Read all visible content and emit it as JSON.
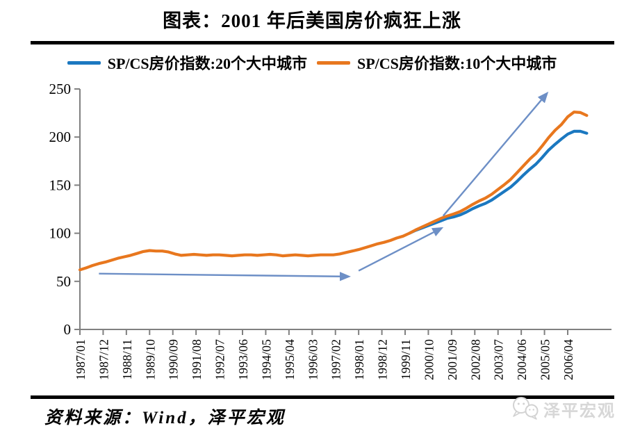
{
  "page": {
    "title": "图表：2001 年后美国房价疯狂上涨",
    "source": "资料来源：Wind，泽平宏观",
    "watermark": "泽平宏观"
  },
  "legend": [
    {
      "label": "SP/CS房价指数:20个大中城市",
      "color": "#1B78C0"
    },
    {
      "label": "SP/CS房价指数:10个大中城市",
      "color": "#E8771E"
    }
  ],
  "chart_data": {
    "type": "line",
    "title": "图表：2001 年后美国房价疯狂上涨",
    "xlabel": "",
    "ylabel": "",
    "ylim": [
      0,
      250
    ],
    "y_ticks": [
      0,
      50,
      100,
      150,
      200,
      250
    ],
    "x_tick_labels": [
      "1987/01",
      "1987/12",
      "1988/11",
      "1989/10",
      "1990/09",
      "1991/08",
      "1992/07",
      "1993/06",
      "1994/05",
      "1995/04",
      "1996/03",
      "1997/02",
      "1998/01",
      "1998/12",
      "1999/11",
      "2000/10",
      "2001/09",
      "2002/08",
      "2003/07",
      "2004/06",
      "2005/05",
      "2006/04"
    ],
    "x_start": "1987/01",
    "x_end": "2007/01",
    "grid": false,
    "legend_position": "top",
    "axis_color": "#808080",
    "arrow_color": "#6D8FC6",
    "series": [
      {
        "name": "SP/CS房价指数:20个大中城市",
        "color": "#1B78C0",
        "start": "2000/01",
        "step_months": 3,
        "values": [
          100,
          103,
          105.5,
          108,
          110.5,
          113,
          115.5,
          117,
          119,
          122,
          125.5,
          128.5,
          131,
          134.5,
          139,
          143.5,
          148,
          154,
          160.5,
          166.5,
          172,
          179,
          186.5,
          192.5,
          198,
          203,
          206,
          206,
          204
        ]
      },
      {
        "name": "SP/CS房价指数:10个大中城市",
        "color": "#E8771E",
        "start": "1987/01",
        "step_months": 3,
        "values": [
          62,
          64,
          66.5,
          68.5,
          70,
          72,
          74,
          75.5,
          77,
          79,
          81,
          82,
          81.5,
          81.5,
          80.5,
          78.5,
          77,
          77.5,
          78,
          77.5,
          77,
          77.5,
          77.5,
          77,
          76.5,
          77,
          77.5,
          77.5,
          77,
          77.5,
          78,
          77.5,
          76.5,
          77,
          77.5,
          77,
          76.5,
          77,
          77.5,
          77.5,
          77.5,
          78.5,
          80,
          81.5,
          83,
          85,
          87,
          89,
          90.5,
          92.5,
          95,
          97,
          100,
          103.5,
          106.5,
          109.5,
          112.5,
          115.5,
          118,
          120,
          122.5,
          126,
          130,
          133.5,
          136.5,
          140.5,
          145.5,
          150.5,
          156,
          163,
          170,
          177,
          183,
          191,
          199.5,
          207,
          213,
          221,
          226,
          225.5,
          222.5
        ]
      }
    ],
    "annotations": [
      {
        "type": "arrow",
        "from": [
          "1987/10",
          58
        ],
        "to": [
          "1997/08",
          55
        ]
      },
      {
        "type": "arrow",
        "from": [
          "1998/01",
          61
        ],
        "to": [
          "2001/04",
          105
        ]
      },
      {
        "type": "arrow",
        "from": [
          "2001/05",
          118
        ],
        "to": [
          "2005/06",
          245
        ]
      }
    ]
  }
}
